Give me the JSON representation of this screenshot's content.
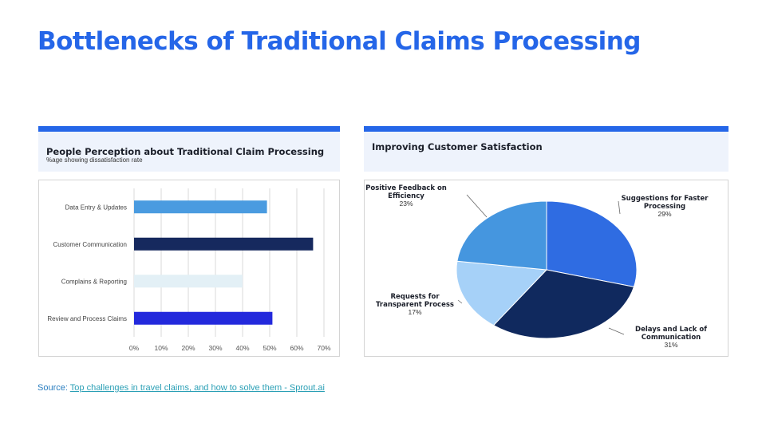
{
  "slide": {
    "title": "Bottlenecks of Traditional Claims Processing",
    "source_prefix": "Source: ",
    "source_link_text": "Top challenges in travel claims, and how to solve them - Sprout.ai"
  },
  "left_panel": {
    "title": "People Perception about Traditional Claim Processing",
    "subtitle": "%age showing dissatisfaction rate"
  },
  "right_panel": {
    "title": "Improving Customer Satisfaction"
  },
  "chart_data": [
    {
      "type": "bar",
      "orientation": "horizontal",
      "categories": [
        "Data Entry & Updates",
        "Customer Communication",
        "Complains & Reporting",
        "Review and Process Claims"
      ],
      "values": [
        49,
        66,
        40,
        51
      ],
      "colors": [
        "#4a9be0",
        "#16295e",
        "#e3f0f6",
        "#2329dc"
      ],
      "xlim": [
        0,
        70
      ],
      "xticks": [
        "0%",
        "10%",
        "20%",
        "30%",
        "40%",
        "50%",
        "60%",
        "70%"
      ],
      "grid": true
    },
    {
      "type": "pie",
      "slices": [
        {
          "label": [
            "Suggestions for Faster",
            "Processing"
          ],
          "pct_label": "29%",
          "value": 29,
          "color": "#2f6ce2"
        },
        {
          "label": [
            "Delays and Lack of",
            "Communication"
          ],
          "pct_label": "31%",
          "value": 31,
          "color": "#10295e"
        },
        {
          "label": [
            "Requests for",
            "Transparent Process"
          ],
          "pct_label": "17%",
          "value": 17,
          "color": "#a6d1f8"
        },
        {
          "label": [
            "Positive Feedback on",
            "Efficiency"
          ],
          "pct_label": "23%",
          "value": 23,
          "color": "#4596df"
        }
      ]
    }
  ]
}
